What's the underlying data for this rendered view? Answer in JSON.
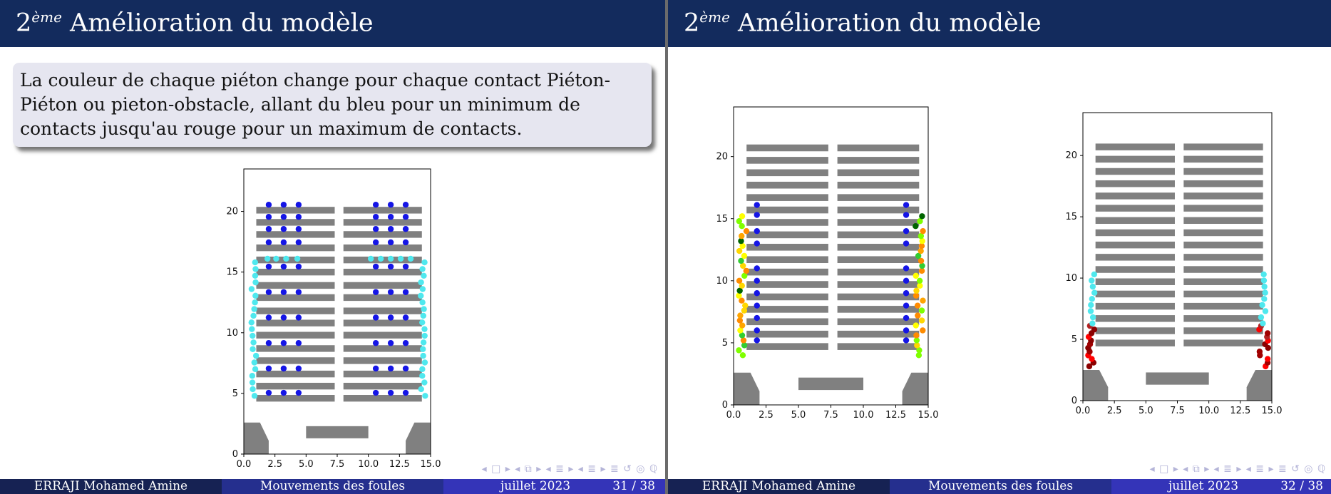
{
  "slides": [
    {
      "title_base": "2",
      "title_sup": "ème",
      "title_rest": " Amélioration du modèle",
      "block_text": "La couleur de chaque piéton change pour chaque contact Piéton-Piéton ou pieton-obstacle, allant du bleu pour un minimum de contacts jusqu'au rouge pour un maximum de contacts.",
      "footer_author": "ERRAJI Mohamed Amine",
      "footer_talk": "Mouvements des foules",
      "footer_date": "juillet 2023",
      "footer_page": "31 / 38",
      "nav_symbols": "◂ □ ▸ ◂ ⧉ ▸ ◂ ≣ ▸ ◂ ≣ ▸   ≣   ↺ ◎ ℚ"
    },
    {
      "title_base": "2",
      "title_sup": "ème",
      "title_rest": " Amélioration du modèle",
      "footer_author": "ERRAJI Mohamed Amine",
      "footer_talk": "Mouvements des foules",
      "footer_date": "juillet 2023",
      "footer_page": "32 / 38",
      "nav_symbols": "◂ □ ▸ ◂ ⧉ ▸ ◂ ≣ ▸ ◂ ≣ ▸   ≣   ↺ ◎ ℚ"
    }
  ],
  "colors": {
    "header": "#132b5d",
    "obstacle": "#808080",
    "low_contact": "#1515e6",
    "mid_contact": "#4fe8ee",
    "high_contact": "#8b0000"
  },
  "chart_data": [
    {
      "type": "scatter",
      "xlim": [
        0,
        15
      ],
      "ylim": [
        0,
        23.5
      ],
      "xticks": [
        "0.0",
        "2.5",
        "5.0",
        "7.5",
        "10.0",
        "12.5",
        "15.0"
      ],
      "yticks": [
        "0",
        "5",
        "10",
        "15",
        "20"
      ],
      "phase": "initial"
    },
    {
      "type": "scatter",
      "xlim": [
        0,
        15
      ],
      "ylim": [
        0,
        24
      ],
      "xticks": [
        "0.0",
        "2.5",
        "5.0",
        "7.5",
        "10.0",
        "12.5",
        "15.0"
      ],
      "yticks": [
        "0",
        "5",
        "10",
        "15",
        "20"
      ],
      "phase": "middle"
    },
    {
      "type": "scatter",
      "xlim": [
        0,
        15
      ],
      "ylim": [
        0,
        23.5
      ],
      "xticks": [
        "0.0",
        "2.5",
        "5.0",
        "7.5",
        "10.0",
        "12.5",
        "15.0"
      ],
      "yticks": [
        "0",
        "5",
        "10",
        "15",
        "20"
      ],
      "phase": "late"
    }
  ]
}
